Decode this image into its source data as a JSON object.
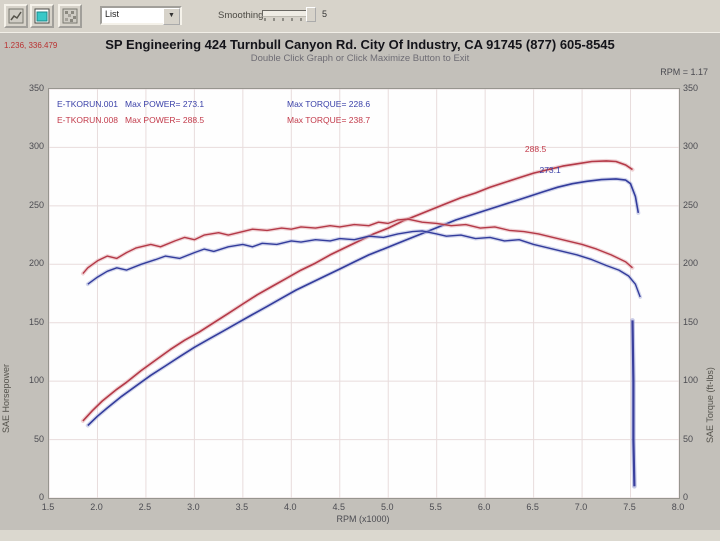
{
  "toolbar": {
    "combo_value": "List",
    "smoothing_label": "Smoothing",
    "smoothing_value": "5"
  },
  "header": {
    "cursor_readout": "1.236, 336.479",
    "title": "SP Engineering 424 Turnbull Canyon Rd. City Of Industry, CA 91745 (877) 605-8545",
    "subtitle": "Double Click Graph or Click Maximize Button to Exit",
    "rpm_readout": "RPM = 1.17"
  },
  "legend": {
    "runs": [
      {
        "label": "E-TKORUN.001   Max POWER= 273.1",
        "color": "#3a41a8"
      },
      {
        "label": "E-TKORUN.008   Max POWER= 288.5",
        "color": "#c23a4a"
      }
    ],
    "torque": [
      {
        "label": "Max TORQUE= 228.6",
        "color": "#3a41a8"
      },
      {
        "label": "Max TORQUE= 238.7",
        "color": "#c23a4a"
      }
    ]
  },
  "chart_data": {
    "type": "line",
    "title": "SP Engineering dyno runs",
    "xlabel": "RPM (x1000)",
    "ylabel_left": "SAE Horsepower",
    "ylabel_right": "SAE Torque (ft-lbs)",
    "xlim": [
      1.5,
      8.0
    ],
    "ylim": [
      0,
      350
    ],
    "x_ticks": [
      1.5,
      2.0,
      2.5,
      3.0,
      3.5,
      4.0,
      4.5,
      5.0,
      5.5,
      6.0,
      6.5,
      7.0,
      7.5,
      8.0
    ],
    "y_ticks": [
      0,
      50,
      100,
      150,
      200,
      250,
      300,
      350
    ],
    "grid_color": "#e8dcdc",
    "legend_position": "top-left inside plot",
    "series": [
      {
        "name": "run-008-power-hp",
        "color": "#b43947",
        "halo": "#e2a7ad",
        "width": 1.6,
        "points": [
          [
            1.85,
            66
          ],
          [
            1.95,
            75
          ],
          [
            2.05,
            83
          ],
          [
            2.2,
            93
          ],
          [
            2.3,
            99
          ],
          [
            2.45,
            109
          ],
          [
            2.6,
            118
          ],
          [
            2.75,
            127
          ],
          [
            2.9,
            135
          ],
          [
            3.05,
            142
          ],
          [
            3.2,
            150
          ],
          [
            3.35,
            158
          ],
          [
            3.5,
            166
          ],
          [
            3.65,
            174
          ],
          [
            3.8,
            181
          ],
          [
            3.95,
            188
          ],
          [
            4.1,
            195
          ],
          [
            4.25,
            201
          ],
          [
            4.4,
            208
          ],
          [
            4.55,
            214
          ],
          [
            4.7,
            220
          ],
          [
            4.85,
            226
          ],
          [
            5.0,
            231
          ],
          [
            5.15,
            237
          ],
          [
            5.3,
            242
          ],
          [
            5.45,
            247
          ],
          [
            5.6,
            252
          ],
          [
            5.75,
            257
          ],
          [
            5.9,
            261
          ],
          [
            6.05,
            266
          ],
          [
            6.2,
            270
          ],
          [
            6.35,
            274
          ],
          [
            6.5,
            278
          ],
          [
            6.65,
            281
          ],
          [
            6.8,
            284
          ],
          [
            6.95,
            286
          ],
          [
            7.1,
            288
          ],
          [
            7.25,
            288.5
          ],
          [
            7.35,
            288
          ],
          [
            7.45,
            285
          ],
          [
            7.52,
            281
          ]
        ]
      },
      {
        "name": "run-001-power-hp",
        "color": "#333c9c",
        "halo": "#a8add9",
        "width": 1.6,
        "points": [
          [
            1.9,
            62
          ],
          [
            2.0,
            70
          ],
          [
            2.1,
            77
          ],
          [
            2.25,
            87
          ],
          [
            2.4,
            96
          ],
          [
            2.55,
            105
          ],
          [
            2.7,
            113
          ],
          [
            2.85,
            121
          ],
          [
            3.0,
            129
          ],
          [
            3.15,
            136
          ],
          [
            3.3,
            143
          ],
          [
            3.45,
            150
          ],
          [
            3.6,
            157
          ],
          [
            3.75,
            164
          ],
          [
            3.9,
            171
          ],
          [
            4.05,
            178
          ],
          [
            4.2,
            184
          ],
          [
            4.35,
            190
          ],
          [
            4.5,
            196
          ],
          [
            4.65,
            202
          ],
          [
            4.8,
            208
          ],
          [
            4.95,
            213
          ],
          [
            5.1,
            218
          ],
          [
            5.25,
            223
          ],
          [
            5.4,
            228
          ],
          [
            5.55,
            233
          ],
          [
            5.7,
            238
          ],
          [
            5.85,
            242
          ],
          [
            6.0,
            246
          ],
          [
            6.15,
            250
          ],
          [
            6.3,
            254
          ],
          [
            6.45,
            258
          ],
          [
            6.6,
            262
          ],
          [
            6.75,
            266
          ],
          [
            6.9,
            269
          ],
          [
            7.05,
            271
          ],
          [
            7.2,
            272.5
          ],
          [
            7.35,
            273.1
          ],
          [
            7.45,
            272
          ],
          [
            7.5,
            269
          ],
          [
            7.55,
            258
          ],
          [
            7.58,
            244
          ]
        ]
      },
      {
        "name": "run-008-torque-ftlb",
        "color": "#b43947",
        "halo": "#e2a7ad",
        "width": 1.4,
        "points": [
          [
            1.85,
            192
          ],
          [
            1.9,
            197
          ],
          [
            2.0,
            203
          ],
          [
            2.1,
            207
          ],
          [
            2.2,
            205
          ],
          [
            2.3,
            210
          ],
          [
            2.4,
            214
          ],
          [
            2.55,
            217
          ],
          [
            2.65,
            215
          ],
          [
            2.8,
            220
          ],
          [
            2.9,
            223
          ],
          [
            3.0,
            221
          ],
          [
            3.1,
            225
          ],
          [
            3.25,
            227
          ],
          [
            3.35,
            225
          ],
          [
            3.5,
            228
          ],
          [
            3.6,
            230
          ],
          [
            3.75,
            229
          ],
          [
            3.9,
            231
          ],
          [
            4.0,
            230
          ],
          [
            4.1,
            232
          ],
          [
            4.25,
            231
          ],
          [
            4.4,
            233
          ],
          [
            4.5,
            232
          ],
          [
            4.65,
            234
          ],
          [
            4.8,
            233
          ],
          [
            4.9,
            236
          ],
          [
            5.0,
            235
          ],
          [
            5.1,
            238
          ],
          [
            5.2,
            238.7
          ],
          [
            5.35,
            236
          ],
          [
            5.5,
            235
          ],
          [
            5.65,
            233
          ],
          [
            5.8,
            234
          ],
          [
            5.95,
            231
          ],
          [
            6.1,
            232
          ],
          [
            6.25,
            229
          ],
          [
            6.4,
            228
          ],
          [
            6.55,
            226
          ],
          [
            6.7,
            223
          ],
          [
            6.85,
            220
          ],
          [
            7.0,
            217
          ],
          [
            7.15,
            213
          ],
          [
            7.3,
            208
          ],
          [
            7.45,
            202
          ],
          [
            7.52,
            197
          ]
        ]
      },
      {
        "name": "run-001-torque-ftlb",
        "color": "#333c9c",
        "halo": "#a8add9",
        "width": 1.4,
        "points": [
          [
            1.9,
            183
          ],
          [
            2.0,
            189
          ],
          [
            2.1,
            194
          ],
          [
            2.2,
            197
          ],
          [
            2.3,
            195
          ],
          [
            2.45,
            200
          ],
          [
            2.6,
            204
          ],
          [
            2.7,
            207
          ],
          [
            2.85,
            205
          ],
          [
            3.0,
            210
          ],
          [
            3.1,
            213
          ],
          [
            3.2,
            211
          ],
          [
            3.35,
            215
          ],
          [
            3.5,
            217
          ],
          [
            3.6,
            215
          ],
          [
            3.7,
            218
          ],
          [
            3.85,
            217
          ],
          [
            4.0,
            220
          ],
          [
            4.1,
            219
          ],
          [
            4.25,
            221
          ],
          [
            4.4,
            220
          ],
          [
            4.5,
            222
          ],
          [
            4.65,
            221
          ],
          [
            4.8,
            224
          ],
          [
            4.95,
            223
          ],
          [
            5.1,
            226
          ],
          [
            5.25,
            228
          ],
          [
            5.35,
            228.6
          ],
          [
            5.5,
            226
          ],
          [
            5.6,
            224
          ],
          [
            5.75,
            225
          ],
          [
            5.9,
            222
          ],
          [
            6.05,
            223
          ],
          [
            6.2,
            220
          ],
          [
            6.35,
            221
          ],
          [
            6.5,
            217
          ],
          [
            6.65,
            214
          ],
          [
            6.8,
            211
          ],
          [
            6.95,
            208
          ],
          [
            7.1,
            204
          ],
          [
            7.25,
            199
          ],
          [
            7.38,
            195
          ],
          [
            7.48,
            190
          ],
          [
            7.55,
            183
          ],
          [
            7.6,
            172
          ]
        ]
      },
      {
        "name": "run-001-revlimit-tail",
        "color": "#3a3f9d",
        "halo": "#8d93cf",
        "width": 2.2,
        "points": [
          [
            7.52,
            152
          ],
          [
            7.53,
            100
          ],
          [
            7.53,
            50
          ],
          [
            7.54,
            10
          ]
        ]
      }
    ],
    "annotations": [
      {
        "text": "288.5",
        "rpm": 6.63,
        "value": 296,
        "color": "#c23a4a"
      },
      {
        "text": "273.1",
        "rpm": 6.78,
        "value": 278,
        "color": "#3a41a8"
      }
    ]
  }
}
